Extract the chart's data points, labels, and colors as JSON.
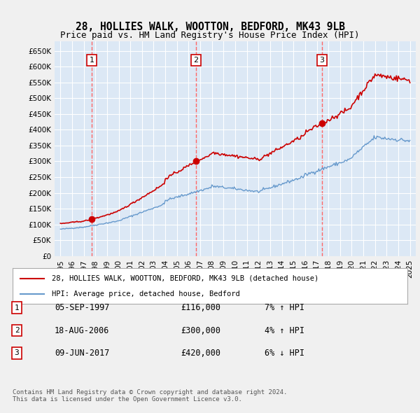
{
  "title": "28, HOLLIES WALK, WOOTTON, BEDFORD, MK43 9LB",
  "subtitle": "Price paid vs. HM Land Registry's House Price Index (HPI)",
  "xlabel": "",
  "ylabel": "",
  "background_color": "#e8f0f8",
  "plot_bg_color": "#dce8f5",
  "ylim": [
    0,
    680000
  ],
  "yticks": [
    0,
    50000,
    100000,
    150000,
    200000,
    250000,
    300000,
    350000,
    400000,
    450000,
    500000,
    550000,
    600000,
    650000
  ],
  "ytick_labels": [
    "£0",
    "£50K",
    "£100K",
    "£150K",
    "£200K",
    "£250K",
    "£300K",
    "£350K",
    "£400K",
    "£450K",
    "£500K",
    "£550K",
    "£600K",
    "£650K"
  ],
  "sales": [
    {
      "date_num": 1997.68,
      "price": 116000,
      "label": "1"
    },
    {
      "date_num": 2006.63,
      "price": 300000,
      "label": "2"
    },
    {
      "date_num": 2017.44,
      "price": 420000,
      "label": "3"
    }
  ],
  "legend_line1": "28, HOLLIES WALK, WOOTTON, BEDFORD, MK43 9LB (detached house)",
  "legend_line2": "HPI: Average price, detached house, Bedford",
  "table_rows": [
    {
      "num": "1",
      "date": "05-SEP-1997",
      "price": "£116,000",
      "hpi": "7% ↑ HPI"
    },
    {
      "num": "2",
      "date": "18-AUG-2006",
      "price": "£300,000",
      "hpi": "4% ↑ HPI"
    },
    {
      "num": "3",
      "date": "09-JUN-2017",
      "price": "£420,000",
      "hpi": "6% ↓ HPI"
    }
  ],
  "footer": "Contains HM Land Registry data © Crown copyright and database right 2024.\nThis data is licensed under the Open Government Licence v3.0.",
  "red_line_color": "#cc0000",
  "blue_line_color": "#6699cc",
  "sale_marker_color": "#cc0000",
  "dashed_line_color": "#ff6666"
}
